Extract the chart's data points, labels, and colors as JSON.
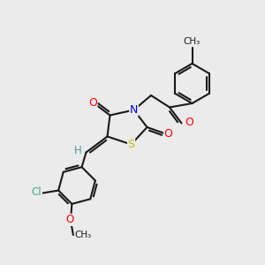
{
  "bg_color": "#ebebeb",
  "bond_color": "#1a1a1a",
  "bond_width": 1.5,
  "atom_colors": {
    "N": "#0000ee",
    "O": "#ff0000",
    "S": "#bbbb00",
    "Cl": "#44aa88",
    "C": "#1a1a1a",
    "H": "#559999"
  },
  "font_size": 8.5,
  "fig_size": [
    3.0,
    3.0
  ],
  "dpi": 100
}
